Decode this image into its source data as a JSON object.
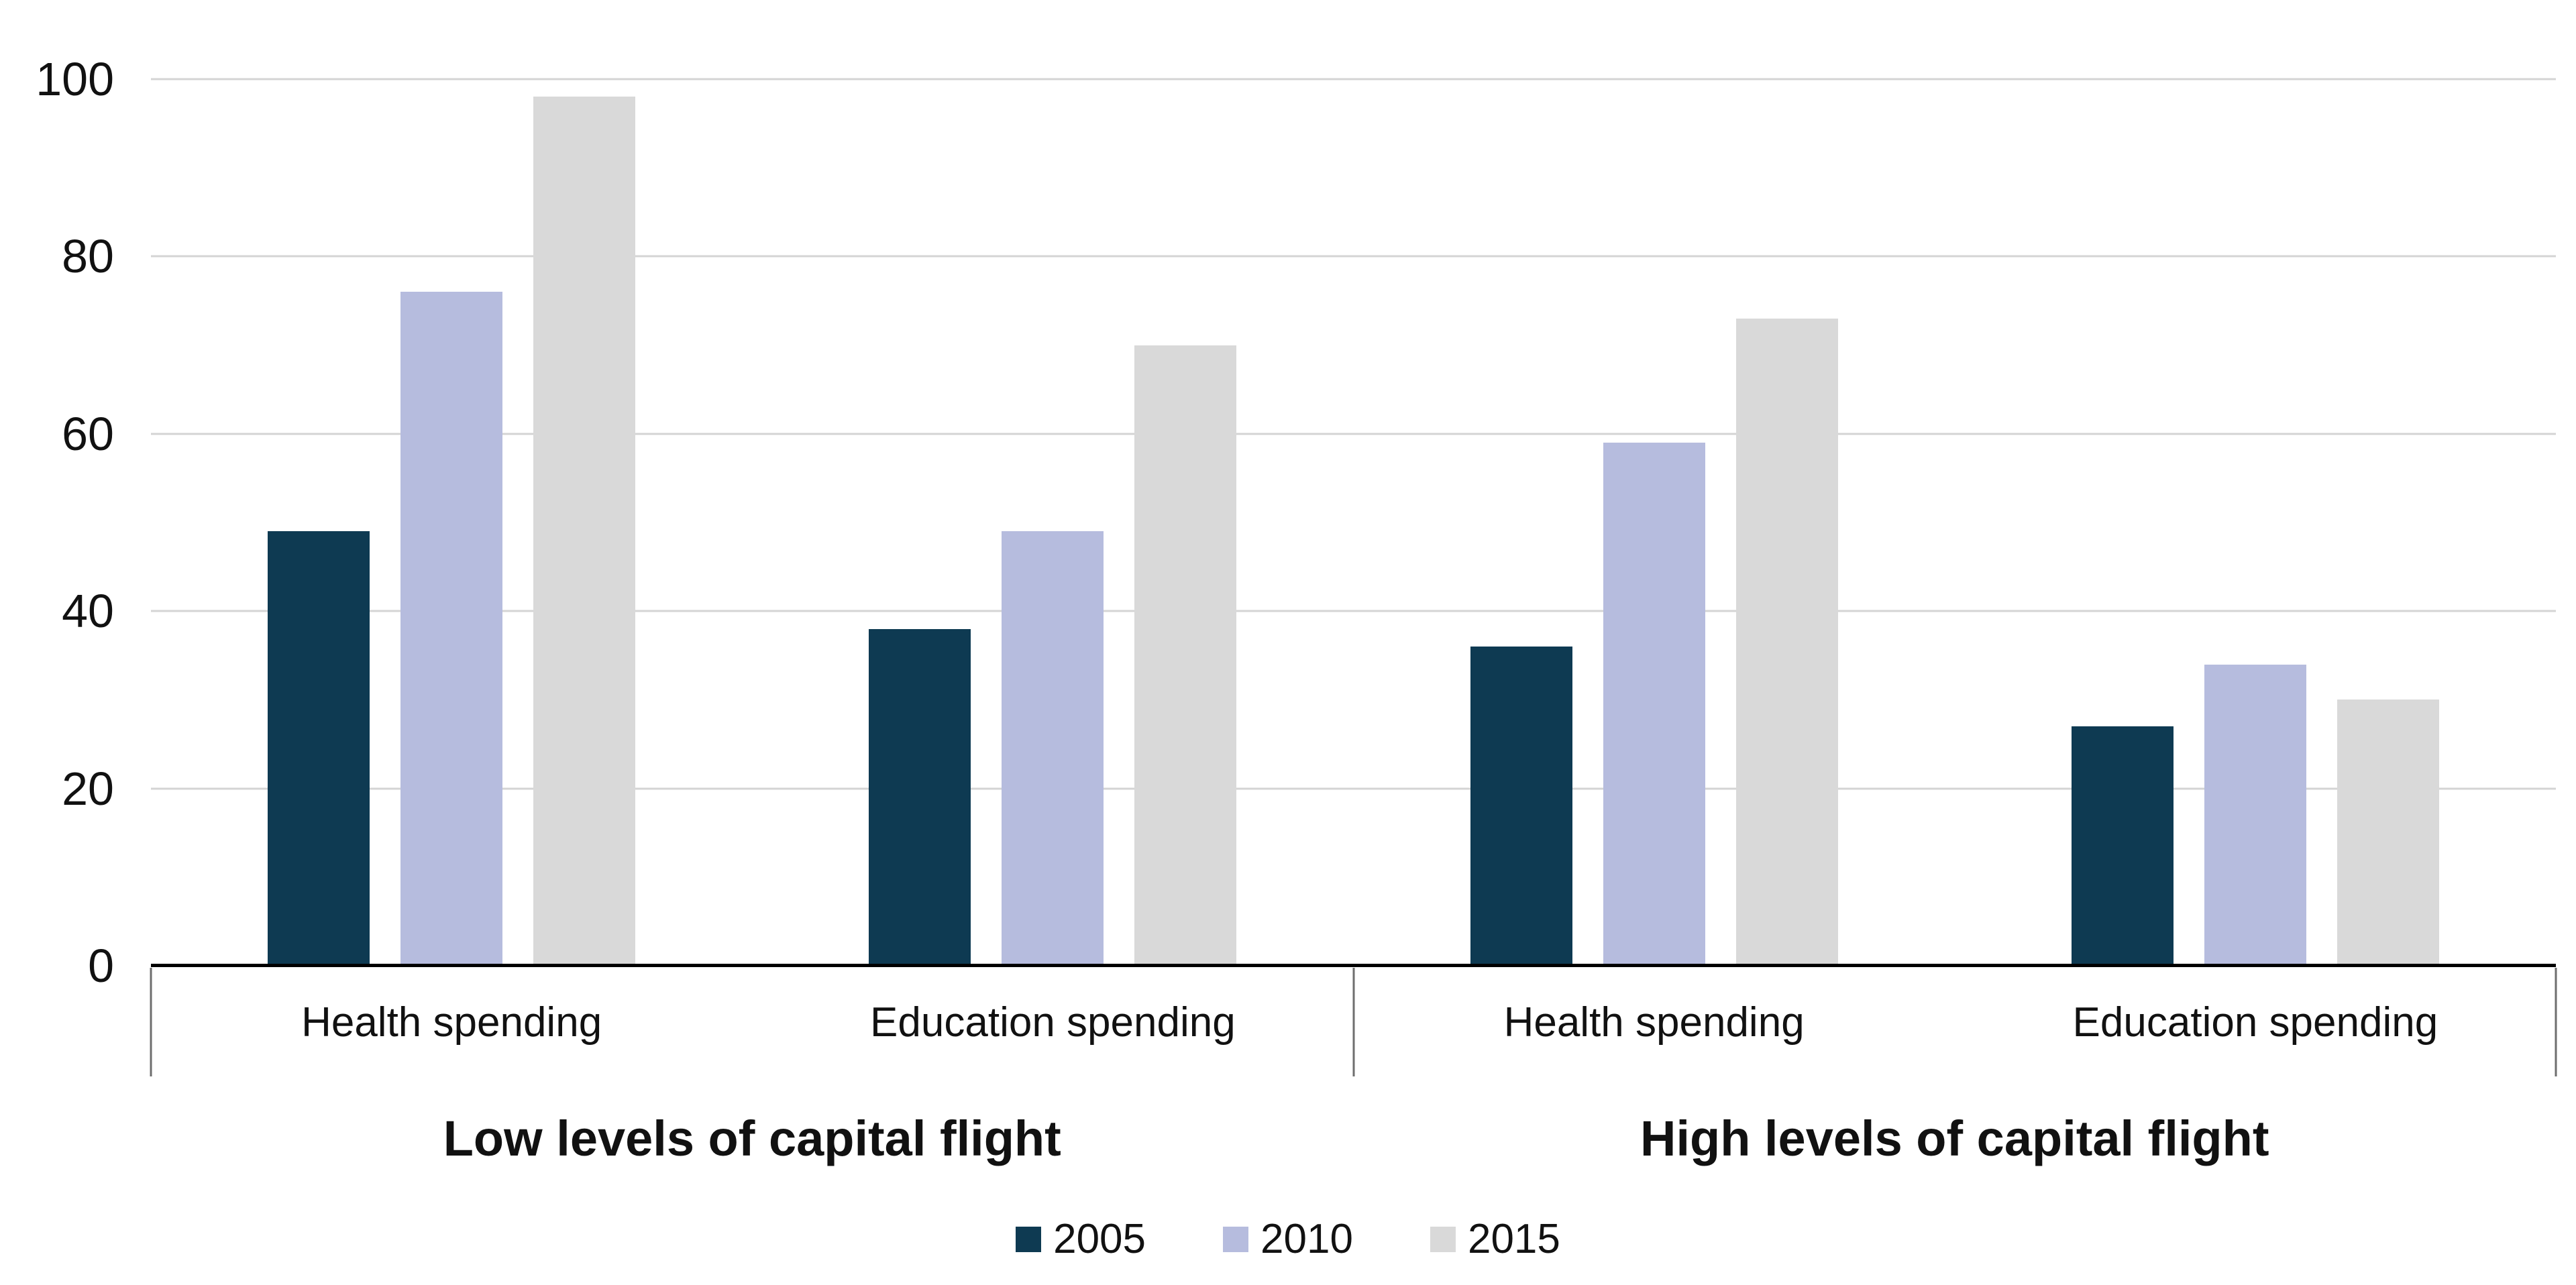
{
  "chart_data": {
    "type": "bar",
    "ylim": [
      0,
      100
    ],
    "yticks": [
      0,
      20,
      40,
      60,
      80,
      100
    ],
    "grid": true,
    "legend_position": "bottom",
    "groups": [
      {
        "label": "Low levels of capital flight",
        "categories": [
          "Health spending",
          "Education spending"
        ]
      },
      {
        "label": "High levels of capital flight",
        "categories": [
          "Health spending",
          "Education spending"
        ]
      }
    ],
    "series": [
      {
        "name": "2005",
        "color": "#0e3a52",
        "values": [
          49,
          38,
          36,
          27
        ]
      },
      {
        "name": "2010",
        "color": "#b6bcde",
        "values": [
          76,
          49,
          59,
          34
        ]
      },
      {
        "name": "2015",
        "color": "#d9d9d9",
        "values": [
          98,
          70,
          73,
          30
        ]
      }
    ]
  }
}
